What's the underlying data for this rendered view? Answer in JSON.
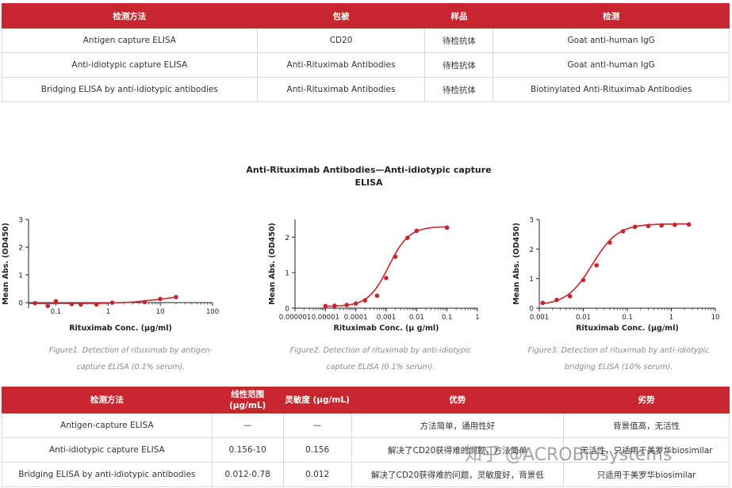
{
  "top_table": {
    "headers": [
      "检测方法",
      "包被",
      "样品",
      "检测"
    ],
    "rows": [
      [
        "Antigen capture ELISA",
        "CD20",
        "待检抗体",
        "Goat anti-human IgG"
      ],
      [
        "Anti-idiotypic capture ELISA",
        "Anti-Rituximab Antibodies",
        "待检抗体",
        "Goat anti-human IgG"
      ],
      [
        "Bridging ELISA by anti-idiotypic antibodies",
        "Anti-Rituximab Antibodies",
        "待检抗体",
        "Biotinylated Anti-Rituximab Antibodies"
      ]
    ]
  },
  "figure_title": "Anti-Rituximab Antibodies—Anti-idiotypic capture ELISA",
  "captions": [
    {
      "line1": "Figure1. Detection of rituximab by antigen-",
      "line2": "capture ELISA (0.1% serum)."
    },
    {
      "line1": "Figure2. Detection of rituximab by anti-idiotypic",
      "line2": "capture ELISA (0.1% serum)."
    },
    {
      "line1": "Figure3. Detection of rituximab by anti-idiotypic",
      "line2": "bridging ELISA (10% serum)."
    }
  ],
  "chart_data": [
    {
      "type": "scatter",
      "xscale": "log",
      "xlim": [
        0.03,
        100
      ],
      "ylim": [
        -0.2,
        3
      ],
      "xticks": [
        0.1,
        1,
        10,
        100
      ],
      "xticklabels": [
        "0.1",
        "1",
        "10",
        "100"
      ],
      "yticks": [
        0,
        1,
        2,
        3
      ],
      "xlabel": "Rituximab Conc. (μg/ml)",
      "ylabel": "Mean Abs. (OD450)",
      "color": "#c8262f",
      "series": [
        {
          "x": [
            0.04,
            0.07,
            0.1,
            0.2,
            0.3,
            0.6,
            1.2,
            5,
            10,
            20
          ],
          "y": [
            -0.02,
            -0.12,
            0.05,
            -0.05,
            -0.07,
            -0.07,
            0.0,
            0.02,
            0.13,
            0.2
          ]
        }
      ],
      "fit": [
        [
          0.03,
          -0.03
        ],
        [
          0.3,
          -0.03
        ],
        [
          1,
          -0.02
        ],
        [
          3,
          0.02
        ],
        [
          10,
          0.12
        ],
        [
          20,
          0.2
        ]
      ]
    },
    {
      "type": "scatter",
      "xscale": "log",
      "xlim": [
        1e-06,
        1
      ],
      "ylim": [
        0,
        2.5
      ],
      "xticks": [
        1e-06,
        1e-05,
        0.0001,
        0.001,
        0.01,
        0.1,
        1
      ],
      "xticklabels": [
        "0.000001",
        "0.00001",
        "0.0001",
        "0.001",
        "0.01",
        "0.1",
        "1"
      ],
      "yticks": [
        0,
        1,
        2
      ],
      "xlabel": "Rituximab Conc. (μ g/ml)",
      "ylabel": "Mean Abs. (OD450)",
      "color": "#c8262f",
      "series": [
        {
          "x": [
            1e-05,
            2e-05,
            5e-05,
            0.0001,
            0.0002,
            0.0005,
            0.001,
            0.002,
            0.005,
            0.01,
            0.1
          ],
          "y": [
            0.06,
            0.07,
            0.09,
            0.13,
            0.22,
            0.35,
            0.85,
            1.45,
            1.98,
            2.18,
            2.27
          ]
        }
      ],
      "fit": {
        "bottom": 0.05,
        "top": 2.3,
        "ec50": 0.0012,
        "hill": 1.3
      }
    },
    {
      "type": "scatter",
      "xscale": "log",
      "xlim": [
        0.001,
        10
      ],
      "ylim": [
        0,
        3
      ],
      "xticks": [
        0.001,
        0.01,
        0.1,
        1,
        10
      ],
      "xticklabels": [
        "0.001",
        "0.01",
        "0.1",
        "1",
        "10"
      ],
      "yticks": [
        0,
        1,
        2,
        3
      ],
      "xlabel": "Rituximab Conc. (μg/ml)",
      "ylabel": "Mean Abs. (OD450)",
      "color": "#c8262f",
      "series": [
        {
          "x": [
            0.0012,
            0.0025,
            0.005,
            0.01,
            0.02,
            0.04,
            0.08,
            0.15,
            0.3,
            0.6,
            1.2,
            2.5
          ],
          "y": [
            0.18,
            0.28,
            0.4,
            0.95,
            1.45,
            2.22,
            2.6,
            2.75,
            2.78,
            2.8,
            2.82,
            2.83
          ]
        }
      ],
      "fit": {
        "bottom": 0.1,
        "top": 2.85,
        "ec50": 0.016,
        "hill": 1.5
      }
    }
  ],
  "bottom_table": {
    "headers": [
      "检测方法",
      "线性范围 (μg/mL)",
      "灵敏度 (μg/mL)",
      "优势",
      "劣势"
    ],
    "rows": [
      [
        "Antigen-capture ELISA",
        "—",
        "—",
        "方法简单，通用性好",
        "背景值高，无活性"
      ],
      [
        "Anti-idiotypic capture ELISA",
        "0.156-10",
        "0.156",
        "解决了CD20获得难的问题，方法简单",
        "无活性，只适用于美罗华biosimilar"
      ],
      [
        "Bridging ELISA by anti-idiotypic antibodies",
        "0.012-0.78",
        "0.012",
        "解决了CD20获得难的问题，灵敏度好，背景低",
        "只适用于美罗华biosimilar"
      ]
    ]
  },
  "watermark_text": "知乎 @ACROBiosystems"
}
